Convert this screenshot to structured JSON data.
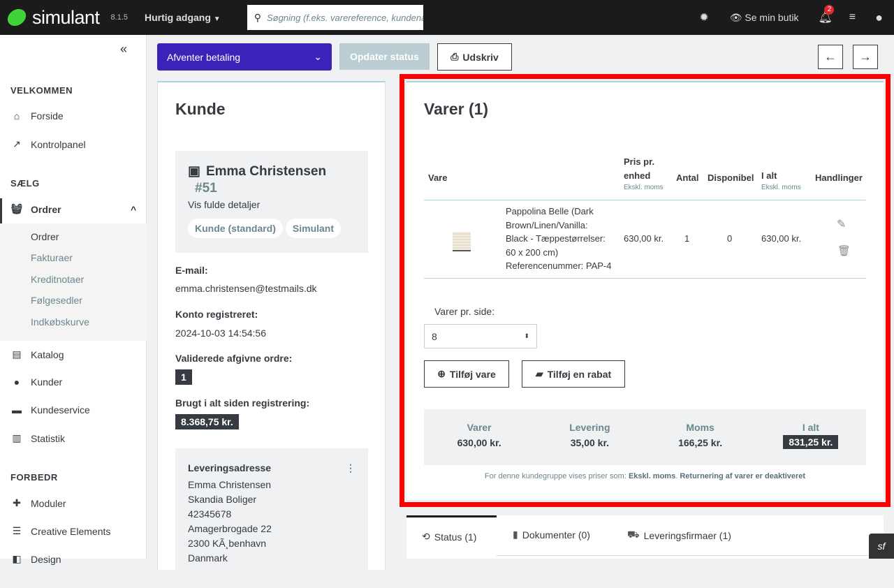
{
  "topbar": {
    "brand": "simulant",
    "version": "8.1.5",
    "quick_access": "Hurtig adgang",
    "search_placeholder": "Søgning (f.eks. varereference, kundenavn…)",
    "view_shop": "Se min butik",
    "notification_count": "2"
  },
  "sidebar": {
    "sections": [
      "VELKOMMEN",
      "SÆLG",
      "FORBEDR"
    ],
    "welcome_items": [
      "Forside",
      "Kontrolpanel"
    ],
    "orders_label": "Ordrer",
    "orders_sub": [
      "Ordrer",
      "Fakturaer",
      "Kreditnotaer",
      "Følgesedler",
      "Indkøbskurve"
    ],
    "sell_items": [
      "Katalog",
      "Kunder",
      "Kundeservice",
      "Statistik"
    ],
    "improve_items": [
      "Moduler",
      "Creative Elements",
      "Design"
    ]
  },
  "toolbar": {
    "status_select": "Afventer betaling",
    "update_status": "Opdater status",
    "print": "Udskriv"
  },
  "customer": {
    "title": "Kunde",
    "name": "Emma Christensen",
    "id": "#51",
    "details_link": "Vis fulde detaljer",
    "groups": [
      "Kunde (standard)",
      "Simulant"
    ],
    "email_label": "E-mail:",
    "email": "emma.christensen@testmails.dk",
    "registered_label": "Konto registreret:",
    "registered": "2024-10-03 14:54:56",
    "orders_label": "Validerede afgivne ordre:",
    "orders": "1",
    "spent_label": "Brugt i alt siden registrering:",
    "spent": "8.368,75 kr.",
    "address": {
      "title": "Leveringsadresse",
      "lines": [
        "Emma Christensen",
        "Skandia Boliger",
        "42345678",
        "Amagerbrogade 22",
        "2300 KÃ¸benhavn",
        "Danmark"
      ]
    }
  },
  "products": {
    "title": "Varer (1)",
    "headers": {
      "product": "Vare",
      "unit_price": "Pris pr. enhed",
      "unit_price_sub": "Ekskl. moms",
      "qty": "Antal",
      "available": "Disponibel",
      "total": "I alt",
      "total_sub": "Ekskl. moms",
      "actions": "Handlinger"
    },
    "rows": [
      {
        "name_lines": [
          "Pappolina Belle (Dark",
          "Brown/Linen/Vanilla:",
          "Black - Tæppestørrelser:",
          "60 x 200 cm)",
          "Referencenummer: PAP-4"
        ],
        "unit_price": "630,00 kr.",
        "qty": "1",
        "available": "0",
        "total": "630,00 kr."
      }
    ],
    "per_page_label": "Varer pr. side:",
    "per_page": "8",
    "add_product": "Tilføj vare",
    "add_discount": "Tilføj en rabat",
    "totals": [
      {
        "label": "Varer",
        "value": "630,00 kr."
      },
      {
        "label": "Levering",
        "value": "35,00 kr."
      },
      {
        "label": "Moms",
        "value": "166,25 kr."
      },
      {
        "label": "I alt",
        "value": "831,25 kr."
      }
    ],
    "note_prefix": "For denne kundegruppe vises priser som:",
    "note_tax": "Ekskl. moms",
    "note_returns": "Returnering af varer er deaktiveret"
  },
  "tabs": [
    "Status (1)",
    "Dokumenter (0)",
    "Leveringsfirmaer (1)"
  ],
  "colors": {
    "accent": "#3a23b8",
    "highlight": "#ff0000",
    "brand_green": "#3fd43a"
  }
}
